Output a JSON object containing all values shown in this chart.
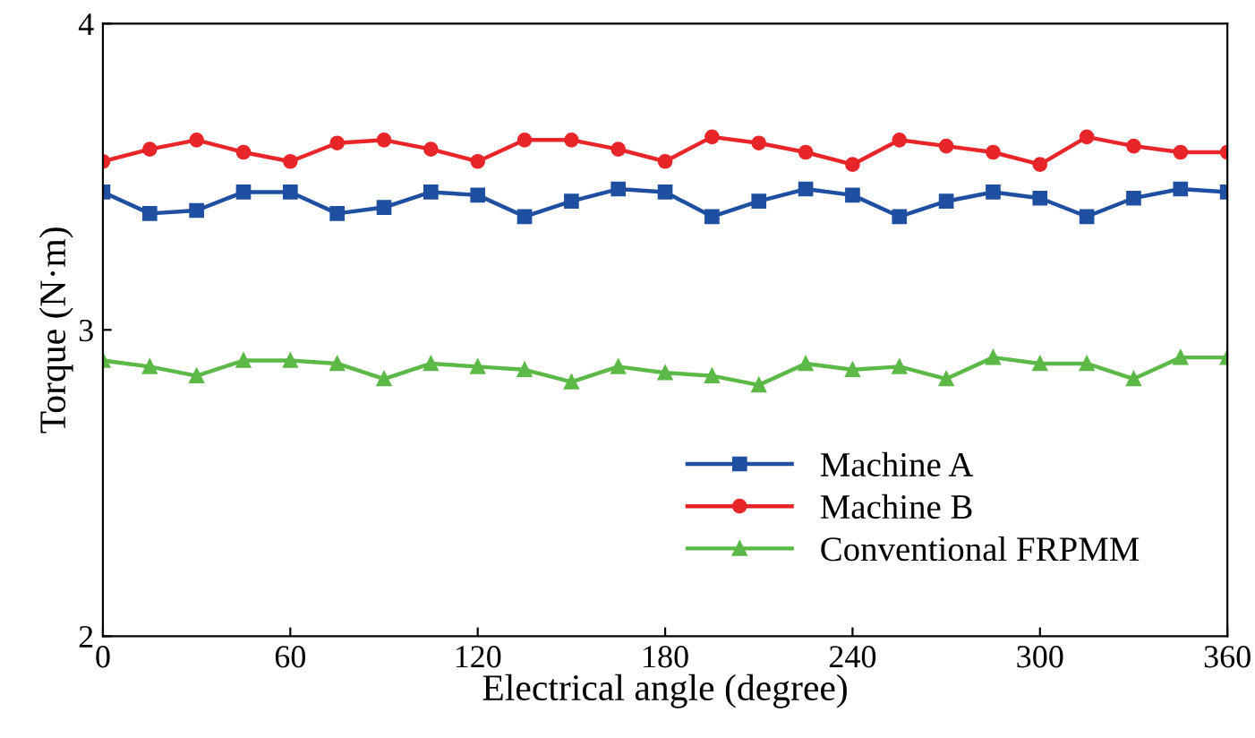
{
  "chart_data": {
    "type": "line",
    "xlabel": "Electrical angle (degree)",
    "ylabel": "Torque (N·m)",
    "x": [
      0,
      15,
      30,
      45,
      60,
      75,
      90,
      105,
      120,
      135,
      150,
      165,
      180,
      195,
      210,
      225,
      240,
      255,
      270,
      285,
      300,
      315,
      330,
      345,
      360
    ],
    "series": [
      {
        "name": "Machine A",
        "color": "#1f4fa0",
        "marker": "square",
        "values": [
          3.45,
          3.38,
          3.39,
          3.45,
          3.45,
          3.38,
          3.4,
          3.45,
          3.44,
          3.37,
          3.42,
          3.46,
          3.45,
          3.37,
          3.42,
          3.46,
          3.44,
          3.37,
          3.42,
          3.45,
          3.43,
          3.37,
          3.43,
          3.46,
          3.45
        ]
      },
      {
        "name": "Machine B",
        "color": "#e8262a",
        "marker": "circle",
        "values": [
          3.55,
          3.59,
          3.62,
          3.58,
          3.55,
          3.61,
          3.62,
          3.59,
          3.55,
          3.62,
          3.62,
          3.59,
          3.55,
          3.63,
          3.61,
          3.58,
          3.54,
          3.62,
          3.6,
          3.58,
          3.54,
          3.63,
          3.6,
          3.58,
          3.58
        ]
      },
      {
        "name": "Conventional FRPMM",
        "color": "#5cb947",
        "marker": "triangle",
        "values": [
          2.9,
          2.88,
          2.85,
          2.9,
          2.9,
          2.89,
          2.84,
          2.89,
          2.88,
          2.87,
          2.83,
          2.88,
          2.86,
          2.85,
          2.82,
          2.89,
          2.87,
          2.88,
          2.84,
          2.91,
          2.89,
          2.89,
          2.84,
          2.91,
          2.91
        ]
      }
    ],
    "xlim": [
      0,
      360
    ],
    "xticks": [
      0,
      60,
      120,
      180,
      240,
      300,
      360
    ],
    "ylim": [
      2,
      4
    ],
    "yticks": [
      2,
      3,
      4
    ],
    "grid": false,
    "legend": "bottom right",
    "line_style": "solid"
  }
}
